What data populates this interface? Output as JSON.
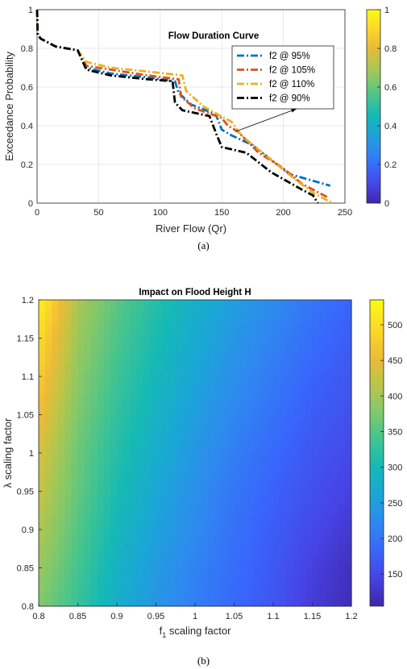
{
  "captions": {
    "a": "(a)",
    "b": "(b)"
  },
  "colors": {
    "parula": [
      "#3e26a8",
      "#4743e5",
      "#3867fb",
      "#2f89f0",
      "#1aa6d6",
      "#15b9b5",
      "#43c490",
      "#83c86a",
      "#bdc547",
      "#f0ba36",
      "#fcdb27",
      "#f9fb15"
    ],
    "f2_95": "#0072bd",
    "f2_105": "#d95319",
    "f2_110": "#edb120",
    "f2_90": "#000000",
    "axis": "#262626",
    "grid": "#e3e3e3"
  },
  "chart_data": [
    {
      "type": "line",
      "title": "Flow Duration Curve",
      "xlabel": "River Flow (Qr)",
      "ylabel": "Exceedance Probability",
      "xlim": [
        0,
        250
      ],
      "ylim": [
        0,
        1
      ],
      "xticks": [
        0,
        50,
        100,
        150,
        200,
        250
      ],
      "yticks": [
        0,
        0.2,
        0.4,
        0.6,
        0.8,
        1
      ],
      "grid": true,
      "legend_position": "upper-right",
      "annotation": "arrow from legend toward curves near Qr 160",
      "colorbar": {
        "ticks": [
          0,
          0.2,
          0.4,
          0.6,
          0.8,
          1
        ]
      },
      "series": [
        {
          "name": "f2 @ 95%",
          "color": "#0072bd",
          "x": [
            0,
            0.5,
            3,
            15,
            33,
            40,
            60,
            90,
            112,
            115,
            125,
            145,
            150,
            158,
            175,
            195,
            205,
            238
          ],
          "y": [
            1,
            0.87,
            0.85,
            0.81,
            0.79,
            0.7,
            0.67,
            0.65,
            0.63,
            0.57,
            0.51,
            0.46,
            0.38,
            0.35,
            0.3,
            0.2,
            0.15,
            0.09
          ]
        },
        {
          "name": "f2 @ 105%",
          "color": "#d95319",
          "x": [
            0,
            0.5,
            3,
            15,
            33,
            40,
            60,
            90,
            115,
            117,
            128,
            150,
            155,
            163,
            180,
            200,
            215,
            236
          ],
          "y": [
            1,
            0.87,
            0.85,
            0.81,
            0.79,
            0.71,
            0.69,
            0.66,
            0.64,
            0.55,
            0.49,
            0.44,
            0.4,
            0.37,
            0.26,
            0.18,
            0.1,
            0.03
          ]
        },
        {
          "name": "f2 @ 110%",
          "color": "#edb120",
          "x": [
            0,
            0.5,
            3,
            15,
            33,
            40,
            60,
            90,
            118,
            121,
            135,
            158,
            166,
            185,
            210,
            225,
            240
          ],
          "y": [
            1,
            0.87,
            0.85,
            0.81,
            0.79,
            0.73,
            0.7,
            0.68,
            0.66,
            0.58,
            0.5,
            0.42,
            0.35,
            0.25,
            0.12,
            0.05,
            0.0
          ]
        },
        {
          "name": "f2 @ 90%",
          "color": "#000000",
          "x": [
            0,
            0.5,
            3,
            15,
            33,
            40,
            60,
            90,
            110,
            112,
            118,
            140,
            146,
            150,
            170,
            190,
            215,
            224,
            228
          ],
          "y": [
            1,
            0.87,
            0.85,
            0.81,
            0.79,
            0.69,
            0.66,
            0.64,
            0.63,
            0.52,
            0.48,
            0.45,
            0.35,
            0.29,
            0.26,
            0.16,
            0.07,
            0.04,
            0.0
          ]
        }
      ]
    },
    {
      "type": "heatmap",
      "title": "Impact on Flood Height H",
      "xlabel": "f",
      "xlabel_subscript": "1",
      "xlabel_suffix": " scaling factor",
      "ylabel": "λ scaling factor",
      "xlim": [
        0.8,
        1.2
      ],
      "ylim": [
        0.8,
        1.2
      ],
      "xticks": [
        0.8,
        0.85,
        0.9,
        0.95,
        1,
        1.05,
        1.1,
        1.15,
        1.2
      ],
      "yticks": [
        0.8,
        0.85,
        0.9,
        0.95,
        1,
        1.05,
        1.1,
        1.15,
        1.2
      ],
      "zlim": [
        105,
        535
      ],
      "colorbar": {
        "ticks": [
          150,
          200,
          250,
          300,
          350,
          400,
          450,
          500
        ]
      },
      "x": [
        0.8,
        0.85,
        0.9,
        0.95,
        1.0,
        1.05,
        1.1,
        1.15,
        1.2
      ],
      "y": [
        0.8,
        0.85,
        0.9,
        0.95,
        1.0,
        1.05,
        1.1,
        1.15,
        1.2
      ],
      "z": [
        [
          380,
          330,
          275,
          240,
          210,
          185,
          165,
          135,
          115
        ],
        [
          395,
          340,
          285,
          245,
          215,
          190,
          168,
          140,
          118
        ],
        [
          410,
          350,
          295,
          255,
          225,
          195,
          172,
          150,
          130
        ],
        [
          425,
          360,
          305,
          265,
          230,
          200,
          178,
          158,
          140
        ],
        [
          440,
          365,
          315,
          275,
          240,
          210,
          185,
          165,
          150
        ],
        [
          460,
          375,
          325,
          285,
          250,
          220,
          195,
          172,
          158
        ],
        [
          480,
          385,
          335,
          295,
          260,
          230,
          205,
          180,
          165
        ],
        [
          500,
          395,
          345,
          305,
          270,
          240,
          215,
          190,
          172
        ],
        [
          525,
          405,
          355,
          315,
          280,
          250,
          225,
          200,
          180
        ]
      ]
    }
  ]
}
